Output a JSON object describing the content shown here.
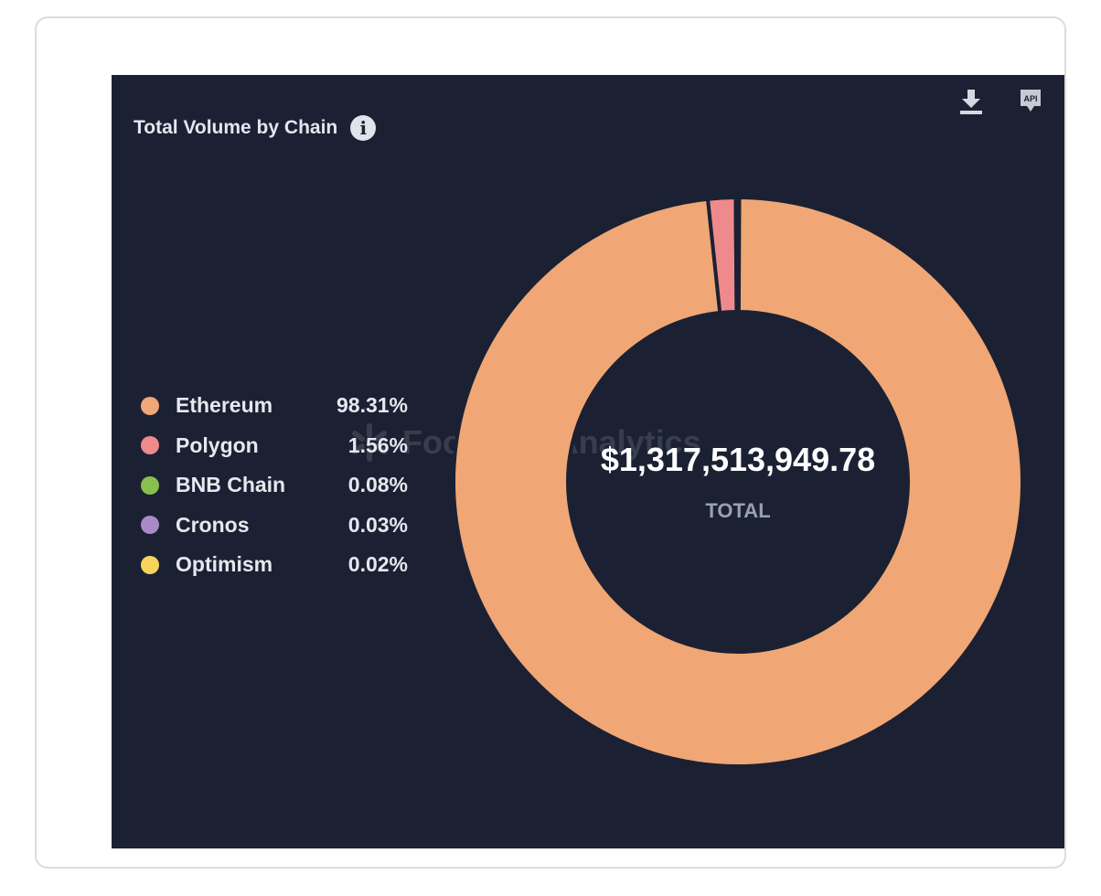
{
  "chart_data": {
    "type": "pie",
    "variant": "donut",
    "title": "Total Volume by Chain",
    "categories": [
      "Ethereum",
      "Polygon",
      "BNB Chain",
      "Cronos",
      "Optimism"
    ],
    "values": [
      98.31,
      1.56,
      0.08,
      0.03,
      0.02
    ],
    "value_labels": [
      "98.31%",
      "1.56%",
      "0.08%",
      "0.03%",
      "0.02%"
    ],
    "colors": [
      "#F0A775",
      "#EE8A8C",
      "#88BF4D",
      "#A98AC6",
      "#F9D45C"
    ],
    "center_value": "$1,317,513,949.78",
    "center_label": "TOTAL",
    "legend_position": "left"
  },
  "watermark": "Footprint Analytics",
  "toolbar": {
    "download_icon": "download-icon",
    "api_label": "API"
  },
  "background": "#1B2133"
}
